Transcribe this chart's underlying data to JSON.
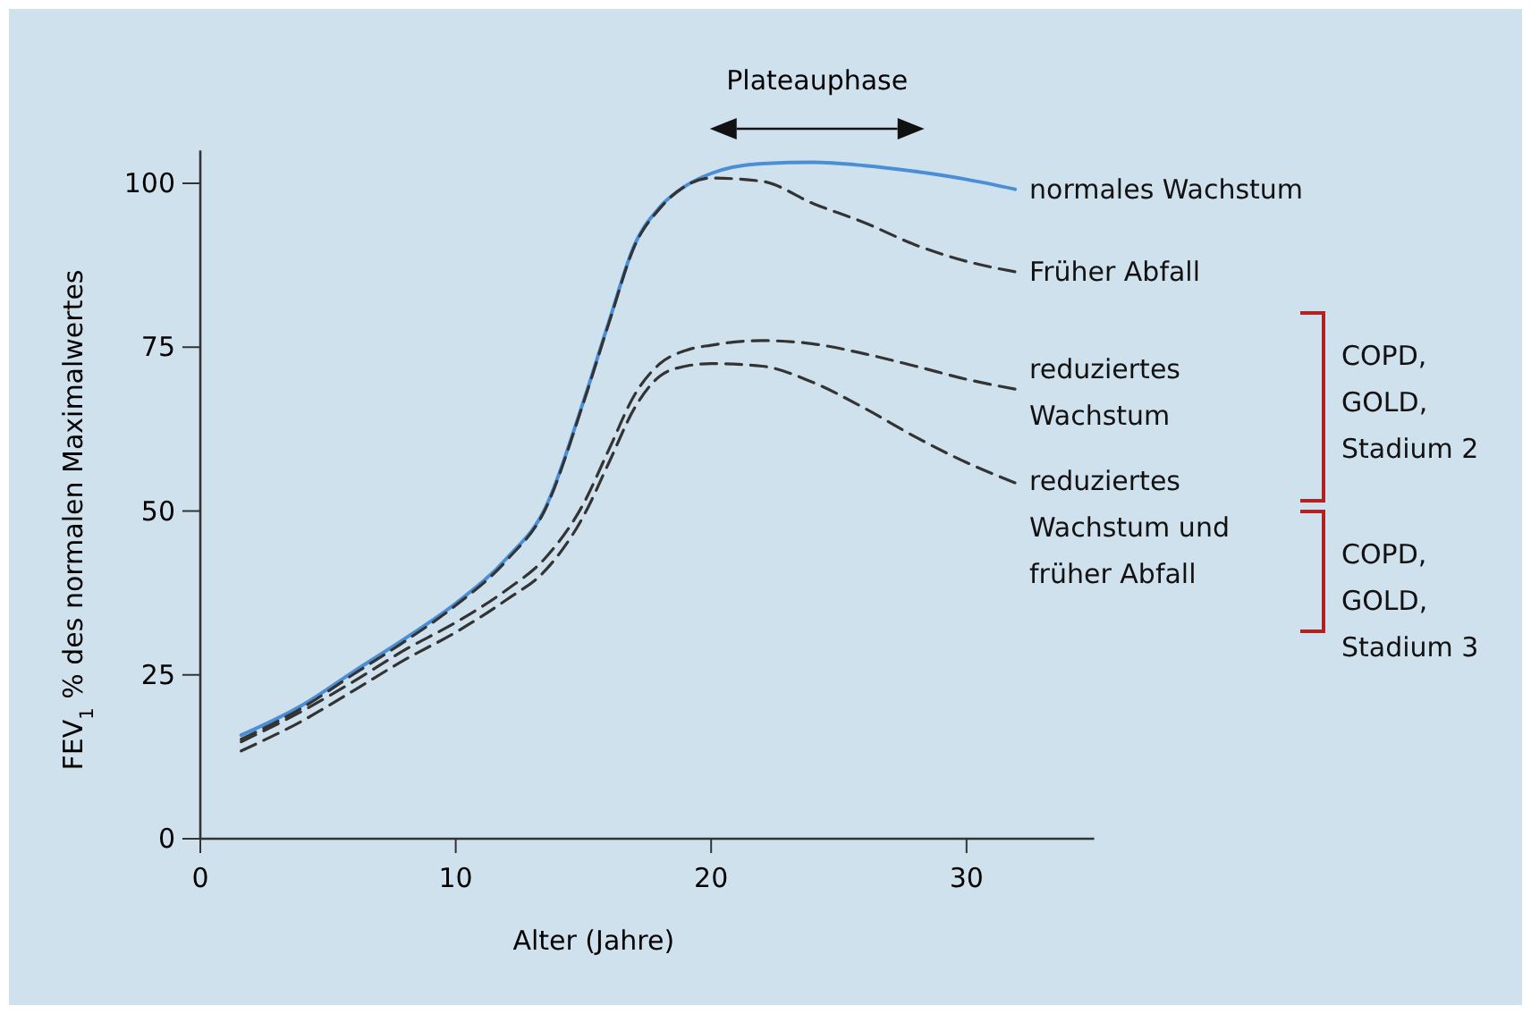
{
  "chart_data": {
    "type": "line",
    "xlabel": "Alter (Jahre)",
    "ylabel": "FEV$_{1}$ % des normalen Maximalwertes",
    "xlim": [
      0,
      35
    ],
    "ylim": [
      0,
      105
    ],
    "xticks": [
      0,
      10,
      20,
      30
    ],
    "yticks": [
      0,
      25,
      50,
      75,
      100
    ],
    "grid": false,
    "x": [
      1.6,
      4,
      6,
      8,
      10,
      12,
      13.5,
      15,
      16,
      17,
      18,
      19,
      20,
      22,
      24,
      26,
      28,
      30,
      31.9
    ],
    "series": [
      {
        "name": "normales Wachstum",
        "color": "#4a8fd6",
        "line_style": "solid",
        "values": [
          15.8,
          20.4,
          25.5,
          30.5,
          35.9,
          42.8,
          50.4,
          66.7,
          78.9,
          90.6,
          96.4,
          99.6,
          101.5,
          103.0,
          103.2,
          102.7,
          101.8,
          100.6,
          99.1
        ]
      },
      {
        "name": "Früher Abfall",
        "color": "#333333",
        "line_style": "dashed",
        "values": [
          15.2,
          20.0,
          25.1,
          30.1,
          35.6,
          42.5,
          50.2,
          66.5,
          78.7,
          90.4,
          96.2,
          99.6,
          100.8,
          100.3,
          96.9,
          94.0,
          90.6,
          88.1,
          86.5
        ]
      },
      {
        "name": "reduziertes Wachstum",
        "color": "#333333",
        "line_style": "dashed",
        "values": [
          14.8,
          19.5,
          24.0,
          28.8,
          33.0,
          38.0,
          42.8,
          51.1,
          59.4,
          67.7,
          72.5,
          74.5,
          75.3,
          76.0,
          75.5,
          74.0,
          72.1,
          70.1,
          68.6
        ]
      },
      {
        "name": "reduziertes Wachstum und früher Abfall",
        "color": "#333333",
        "line_style": "dashed",
        "values": [
          13.4,
          18.0,
          22.6,
          27.3,
          31.5,
          36.5,
          40.9,
          49.2,
          57.4,
          65.7,
          70.6,
          72.1,
          72.5,
          72.1,
          69.6,
          65.7,
          61.3,
          57.4,
          54.3
        ]
      }
    ],
    "annotations": [
      "Plateauphase",
      "COPD, GOLD, Stadium 2",
      "COPD, GOLD, Stadium 3"
    ]
  }
}
